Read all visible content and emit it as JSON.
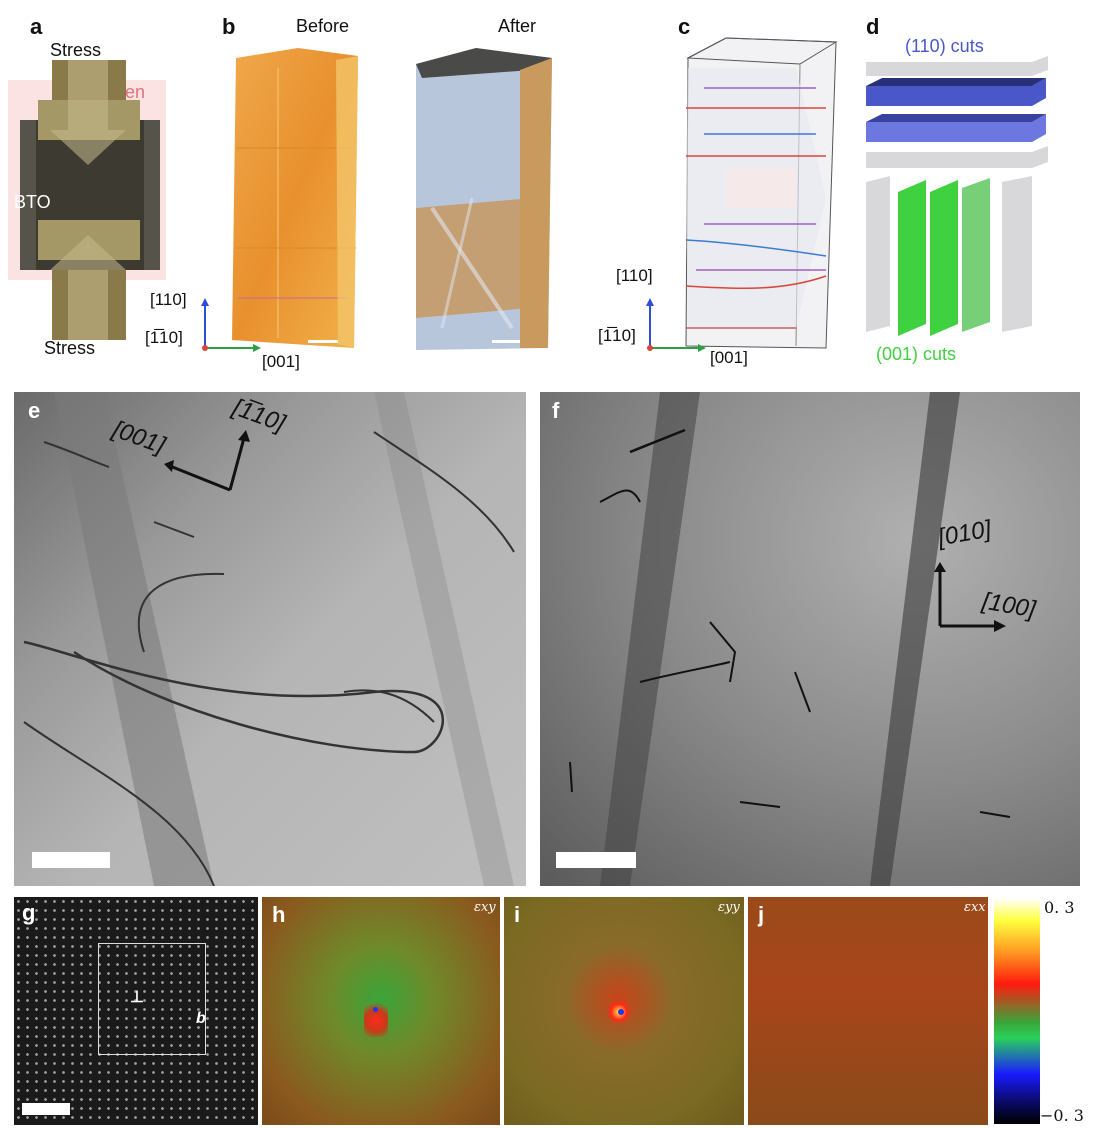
{
  "panel_labels": {
    "a": "a",
    "b": "b",
    "c": "c",
    "d": "d",
    "e": "e",
    "f": "f",
    "g": "g",
    "h": "h",
    "i": "i",
    "j": "j"
  },
  "panel_a": {
    "stress_top": "Stress",
    "stress_bottom": "Stress",
    "oven": "Oven",
    "sample": "BTO"
  },
  "panel_b": {
    "before": "Before",
    "after": "After",
    "axis_110": "[110]",
    "axis_m110": "[1̅10]",
    "axis_001": "[001]"
  },
  "panel_c": {
    "axis_110": "[110]",
    "axis_m110": "[1̅10]",
    "axis_001": "[001]"
  },
  "panel_d": {
    "cuts_110": "(110) cuts",
    "cuts_001": "(001) cuts"
  },
  "panel_e": {
    "dir_001": "[001]",
    "dir_m110": "[1̅10]"
  },
  "panel_f": {
    "dir_010": "[010]",
    "dir_100": "[100]"
  },
  "panel_g": {
    "burgers": "b"
  },
  "strain_maps": {
    "h": "εxy",
    "i": "εyy",
    "j": "εxx"
  },
  "colorbar": {
    "max": "0. 3",
    "min": "−0. 3"
  },
  "colors": {
    "oven": "#e0737a",
    "blue_cut": "#4a57c9",
    "green_cut": "#3fd13f",
    "arrow_blue": "#3a7bd5",
    "arrow_red": "#d9463b",
    "arrow_green": "#2ea043"
  }
}
